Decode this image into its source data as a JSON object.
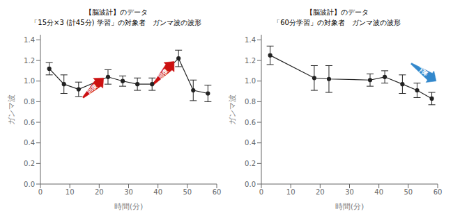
{
  "chart_data": [
    {
      "type": "line",
      "title": "【脳波計】のデータ",
      "subtitle": "「15分×3 (計45分) 学習」の対象者　ガンマ波の波形",
      "x": [
        3,
        8,
        13,
        23,
        28,
        33,
        38,
        47,
        52,
        57
      ],
      "values": [
        1.12,
        0.97,
        0.92,
        1.04,
        1.0,
        0.97,
        0.97,
        1.22,
        0.91,
        0.88
      ],
      "yerr": [
        0.06,
        0.09,
        0.07,
        0.07,
        0.05,
        0.06,
        0.06,
        0.08,
        0.1,
        0.08
      ],
      "color": "#222222",
      "marker": "o",
      "xlabel": "時間(分)",
      "ylabel": "ガンマ波",
      "xlim": [
        0,
        60
      ],
      "ylim": [
        0.0,
        1.45
      ],
      "xticks": [
        0,
        10,
        20,
        30,
        40,
        50,
        60
      ],
      "yticks": [
        {
          "value": 0,
          "label": "0.0"
        },
        0.2,
        0.4,
        0.6,
        0.8,
        {
          "value": 1,
          "label": "1.0"
        },
        1.2,
        1.4
      ],
      "annotations": [
        {
          "text": "回復",
          "color": "#cc1111",
          "x": 14.5,
          "y": 0.84,
          "x_end": 21.5,
          "y_end": 1.03
        },
        {
          "text": "回復",
          "color": "#cc1111",
          "x": 38.5,
          "y": 0.97,
          "x_end": 45.5,
          "y_end": 1.19
        }
      ]
    },
    {
      "type": "line",
      "title": "【脳波計】のデータ",
      "subtitle": "「60分学習」の対象者　ガンマ波の波形",
      "x": [
        3,
        18,
        23,
        37,
        42,
        48,
        53,
        58
      ],
      "values": [
        1.25,
        1.03,
        1.02,
        1.01,
        1.04,
        0.97,
        0.91,
        0.83
      ],
      "yerr": [
        0.09,
        0.12,
        0.13,
        0.06,
        0.06,
        0.09,
        0.07,
        0.06
      ],
      "color": "#222222",
      "marker": "o",
      "xlabel": "時間(分)",
      "ylabel": "ガンマ波",
      "xlim": [
        0,
        60
      ],
      "ylim": [
        0.0,
        1.45
      ],
      "xticks": [
        0,
        10,
        20,
        30,
        40,
        50,
        60
      ],
      "yticks": [
        {
          "value": 0,
          "label": "0.0"
        },
        0.2,
        0.4,
        0.6,
        0.8,
        {
          "value": 1,
          "label": "1.0"
        },
        1.2,
        1.4
      ],
      "annotations": [
        {
          "text": "下降",
          "color": "#3388cc",
          "x": 51.0,
          "y": 1.17,
          "x_end": 59.5,
          "y_end": 1.0
        }
      ]
    }
  ]
}
